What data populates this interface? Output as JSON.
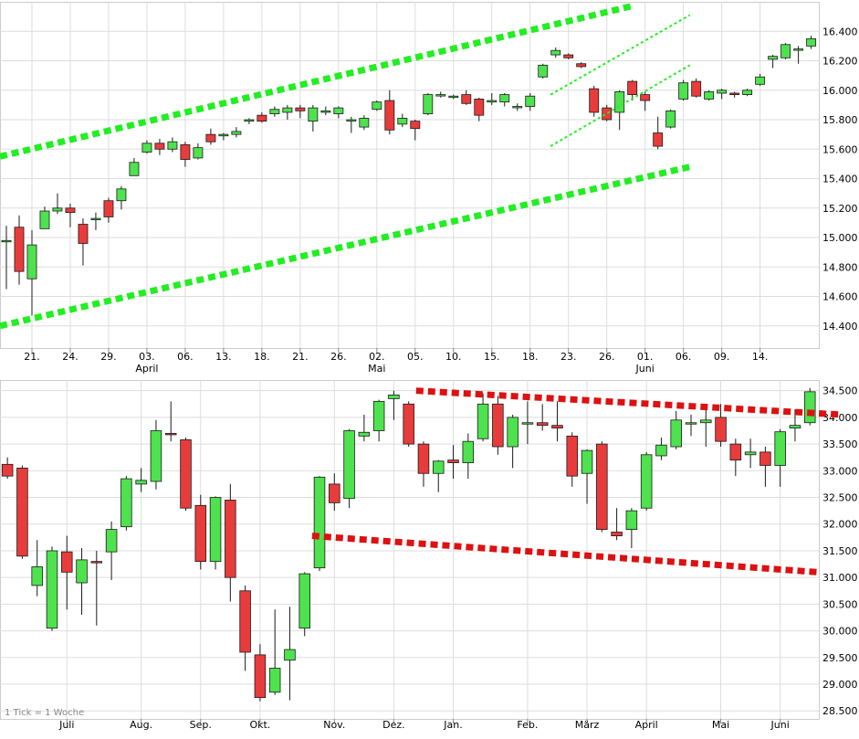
{
  "colors": {
    "up": "#4ee24e",
    "down": "#e83c3c",
    "outline": "#1a1a1a",
    "grid": "#dddddd",
    "upper_channel": "#22ee22",
    "lower_channel": "#dd1111",
    "text": "#000000",
    "footnote": "#888888"
  },
  "chart_data": [
    {
      "type": "candlestick",
      "timeframe": "daily",
      "ylim": [
        14.25,
        16.6
      ],
      "y_ticks": [
        "14.400",
        "14.600",
        "14.800",
        "15.000",
        "15.200",
        "15.400",
        "15.600",
        "15.800",
        "16.000",
        "16.200",
        "16.400"
      ],
      "x_ticks": [
        {
          "label": "21.",
          "i": 2
        },
        {
          "label": "24.",
          "i": 5
        },
        {
          "label": "29.",
          "i": 8
        },
        {
          "label": "03.",
          "i": 11
        },
        {
          "label": "06.",
          "i": 14
        },
        {
          "label": "13.",
          "i": 17
        },
        {
          "label": "18.",
          "i": 20
        },
        {
          "label": "21.",
          "i": 23
        },
        {
          "label": "26.",
          "i": 26
        },
        {
          "label": "02.",
          "i": 29
        },
        {
          "label": "05.",
          "i": 32
        },
        {
          "label": "10.",
          "i": 35
        },
        {
          "label": "15.",
          "i": 38
        },
        {
          "label": "18.",
          "i": 41
        },
        {
          "label": "23.",
          "i": 44
        },
        {
          "label": "26.",
          "i": 47
        },
        {
          "label": "01.",
          "i": 50
        },
        {
          "label": "06.",
          "i": 53
        },
        {
          "label": "09.",
          "i": 56
        },
        {
          "label": "14.",
          "i": 59
        }
      ],
      "month_labels": [
        {
          "label": "April",
          "i": 11
        },
        {
          "label": "Mai",
          "i": 29
        },
        {
          "label": "Juni",
          "i": 50
        }
      ],
      "candles": [
        [
          14.98,
          14.98,
          15.08,
          14.65
        ],
        [
          15.07,
          14.77,
          15.15,
          14.68
        ],
        [
          14.72,
          14.95,
          15.05,
          14.47
        ],
        [
          15.06,
          15.18,
          15.21,
          15.06
        ],
        [
          15.18,
          15.2,
          15.3,
          15.16
        ],
        [
          15.2,
          15.17,
          15.23,
          15.07
        ],
        [
          15.09,
          14.96,
          15.13,
          14.81
        ],
        [
          15.13,
          15.13,
          15.17,
          15.05
        ],
        [
          15.25,
          15.14,
          15.27,
          15.1
        ],
        [
          15.25,
          15.33,
          15.35,
          15.19
        ],
        [
          15.42,
          15.51,
          15.54,
          15.42
        ],
        [
          15.58,
          15.64,
          15.66,
          15.57
        ],
        [
          15.64,
          15.6,
          15.67,
          15.56
        ],
        [
          15.6,
          15.65,
          15.68,
          15.58
        ],
        [
          15.63,
          15.53,
          15.65,
          15.48
        ],
        [
          15.54,
          15.61,
          15.64,
          15.53
        ],
        [
          15.7,
          15.65,
          15.74,
          15.63
        ],
        [
          15.69,
          15.7,
          15.71,
          15.66
        ],
        [
          15.7,
          15.72,
          15.75,
          15.68
        ],
        [
          15.79,
          15.8,
          15.81,
          15.77
        ],
        [
          15.83,
          15.79,
          15.85,
          15.78
        ],
        [
          15.84,
          15.87,
          15.89,
          15.82
        ],
        [
          15.85,
          15.88,
          15.9,
          15.8
        ],
        [
          15.88,
          15.86,
          15.9,
          15.81
        ],
        [
          15.79,
          15.88,
          15.9,
          15.72
        ],
        [
          15.85,
          15.86,
          15.89,
          15.83
        ],
        [
          15.84,
          15.88,
          15.89,
          15.81
        ],
        [
          15.8,
          15.8,
          15.82,
          15.71
        ],
        [
          15.75,
          15.81,
          15.83,
          15.73
        ],
        [
          15.87,
          15.92,
          15.93,
          15.86
        ],
        [
          15.93,
          15.73,
          16.0,
          15.7
        ],
        [
          15.77,
          15.81,
          15.84,
          15.75
        ],
        [
          15.79,
          15.74,
          15.8,
          15.66
        ],
        [
          15.84,
          15.97,
          15.98,
          15.83
        ],
        [
          15.97,
          15.97,
          15.99,
          15.95
        ],
        [
          15.96,
          15.96,
          15.97,
          15.94
        ],
        [
          15.97,
          15.91,
          16.0,
          15.9
        ],
        [
          15.94,
          15.83,
          15.95,
          15.79
        ],
        [
          15.92,
          15.93,
          15.98,
          15.9
        ],
        [
          15.92,
          15.97,
          15.98,
          15.89
        ],
        [
          15.89,
          15.89,
          15.91,
          15.86
        ],
        [
          15.89,
          15.96,
          15.98,
          15.86
        ],
        [
          16.09,
          16.17,
          16.18,
          16.08
        ],
        [
          16.24,
          16.27,
          16.29,
          16.22
        ],
        [
          16.24,
          16.22,
          16.25,
          16.21
        ],
        [
          16.18,
          16.16,
          16.19,
          16.15
        ],
        [
          16.01,
          15.85,
          16.03,
          15.82
        ],
        [
          15.88,
          15.8,
          15.9,
          15.79
        ],
        [
          15.85,
          15.99,
          16.0,
          15.73
        ],
        [
          16.06,
          15.97,
          16.07,
          15.93
        ],
        [
          15.97,
          15.93,
          15.99,
          15.86
        ],
        [
          15.71,
          15.62,
          15.82,
          15.6
        ],
        [
          15.75,
          15.86,
          15.87,
          15.74
        ],
        [
          15.94,
          16.05,
          16.07,
          15.93
        ],
        [
          16.06,
          15.96,
          16.08,
          15.95
        ],
        [
          15.94,
          15.99,
          16.0,
          15.93
        ],
        [
          15.98,
          16.0,
          16.01,
          15.94
        ],
        [
          15.98,
          15.97,
          15.99,
          15.95
        ],
        [
          15.97,
          16.0,
          16.01,
          15.96
        ],
        [
          16.04,
          16.09,
          16.11,
          16.03
        ],
        [
          16.21,
          16.23,
          16.24,
          16.15
        ],
        [
          16.22,
          16.31,
          16.32,
          16.21
        ],
        [
          16.28,
          16.28,
          16.3,
          16.18
        ],
        [
          16.3,
          16.35,
          16.37,
          16.28
        ]
      ],
      "trendlines": [
        {
          "color_key": "upper_channel",
          "style": "thick",
          "from": [
            -0.5,
            15.55
          ],
          "to": [
            48.9,
            16.57
          ]
        },
        {
          "color_key": "upper_channel",
          "style": "thick",
          "from": [
            -0.5,
            14.4
          ],
          "to": [
            53.5,
            15.48
          ]
        },
        {
          "color_key": "upper_channel",
          "style": "thin",
          "from": [
            42.6,
            15.97
          ],
          "to": [
            53.5,
            16.51
          ]
        },
        {
          "color_key": "upper_channel",
          "style": "thin",
          "from": [
            42.6,
            15.62
          ],
          "to": [
            53.5,
            16.17
          ]
        }
      ]
    },
    {
      "type": "candlestick",
      "timeframe": "weekly",
      "ylim": [
        28.35,
        34.7
      ],
      "y_ticks": [
        "28.500",
        "29.000",
        "29.500",
        "30.000",
        "30.500",
        "31.000",
        "31.500",
        "32.000",
        "32.500",
        "33.000",
        "33.500",
        "34.000",
        "34.500"
      ],
      "x_ticks": [
        {
          "label": "Juli",
          "i": 4
        },
        {
          "label": "Aug.",
          "i": 9
        },
        {
          "label": "Sep.",
          "i": 13
        },
        {
          "label": "Okt.",
          "i": 17
        },
        {
          "label": "Nov.",
          "i": 22
        },
        {
          "label": "Dez.",
          "i": 26
        },
        {
          "label": "Jan.",
          "i": 30
        },
        {
          "label": "Feb.",
          "i": 35
        },
        {
          "label": "März",
          "i": 39
        },
        {
          "label": "April",
          "i": 43
        },
        {
          "label": "Mai",
          "i": 48
        },
        {
          "label": "Juni",
          "i": 52
        }
      ],
      "footnote": "1 Tick = 1 Woche",
      "candles": [
        [
          33.12,
          32.9,
          33.25,
          32.85
        ],
        [
          33.05,
          31.4,
          33.1,
          31.35
        ],
        [
          30.85,
          31.2,
          31.7,
          30.65
        ],
        [
          30.05,
          31.5,
          31.58,
          30.0
        ],
        [
          31.48,
          31.1,
          31.78,
          30.4
        ],
        [
          30.9,
          31.33,
          31.55,
          30.3
        ],
        [
          31.3,
          31.28,
          31.5,
          30.1
        ],
        [
          31.48,
          31.9,
          32.05,
          30.95
        ],
        [
          31.95,
          32.85,
          32.9,
          31.88
        ],
        [
          32.75,
          32.82,
          33.05,
          32.6
        ],
        [
          32.8,
          33.75,
          33.95,
          32.65
        ],
        [
          33.7,
          33.68,
          34.3,
          33.55
        ],
        [
          33.58,
          32.3,
          33.62,
          32.25
        ],
        [
          32.35,
          31.3,
          32.55,
          31.15
        ],
        [
          31.3,
          32.5,
          32.52,
          31.15
        ],
        [
          32.45,
          31.0,
          32.75,
          30.55
        ],
        [
          30.75,
          29.6,
          30.85,
          29.25
        ],
        [
          29.55,
          28.75,
          29.75,
          28.68
        ],
        [
          28.85,
          29.3,
          30.4,
          28.8
        ],
        [
          29.45,
          29.65,
          30.45,
          28.7
        ],
        [
          30.05,
          31.07,
          31.1,
          29.9
        ],
        [
          31.18,
          32.88,
          32.9,
          31.12
        ],
        [
          32.75,
          32.4,
          32.95,
          32.25
        ],
        [
          32.48,
          33.75,
          33.78,
          32.3
        ],
        [
          33.65,
          33.72,
          34.05,
          33.55
        ],
        [
          33.75,
          34.3,
          34.33,
          33.55
        ],
        [
          34.35,
          34.42,
          34.5,
          33.95
        ],
        [
          34.25,
          33.5,
          34.3,
          33.45
        ],
        [
          33.5,
          32.95,
          33.55,
          32.7
        ],
        [
          32.95,
          33.18,
          33.2,
          32.6
        ],
        [
          33.2,
          33.15,
          33.48,
          32.85
        ],
        [
          33.15,
          33.55,
          33.7,
          32.85
        ],
        [
          33.6,
          34.25,
          34.45,
          33.55
        ],
        [
          34.25,
          33.45,
          34.4,
          33.3
        ],
        [
          33.45,
          34.0,
          34.05,
          33.05
        ],
        [
          33.9,
          33.9,
          34.3,
          33.5
        ],
        [
          33.9,
          33.85,
          34.25,
          33.75
        ],
        [
          33.85,
          33.8,
          34.3,
          33.55
        ],
        [
          33.65,
          32.9,
          33.72,
          32.7
        ],
        [
          32.95,
          33.38,
          33.4,
          32.38
        ],
        [
          33.5,
          31.9,
          33.55,
          31.85
        ],
        [
          31.85,
          31.78,
          32.3,
          31.7
        ],
        [
          31.9,
          32.25,
          32.3,
          31.55
        ],
        [
          32.3,
          33.3,
          33.35,
          32.25
        ],
        [
          33.28,
          33.48,
          33.62,
          33.2
        ],
        [
          33.45,
          33.95,
          34.12,
          33.4
        ],
        [
          33.9,
          33.9,
          34.05,
          33.65
        ],
        [
          33.9,
          33.95,
          34.25,
          33.45
        ],
        [
          34.0,
          33.55,
          34.25,
          33.45
        ],
        [
          33.5,
          33.2,
          33.6,
          32.9
        ],
        [
          33.3,
          33.35,
          33.6,
          33.05
        ],
        [
          33.35,
          33.1,
          33.45,
          32.7
        ],
        [
          33.1,
          33.73,
          33.78,
          32.7
        ],
        [
          33.8,
          33.85,
          34.15,
          33.55
        ],
        [
          33.9,
          34.48,
          34.55,
          33.85
        ]
      ],
      "trendlines": [
        {
          "color_key": "lower_channel",
          "style": "thick",
          "from": [
            27.5,
            34.5
          ],
          "to": [
            56.2,
            34.05
          ]
        },
        {
          "color_key": "lower_channel",
          "style": "thick",
          "from": [
            20.5,
            31.78
          ],
          "to": [
            54.5,
            31.1
          ]
        }
      ]
    }
  ]
}
